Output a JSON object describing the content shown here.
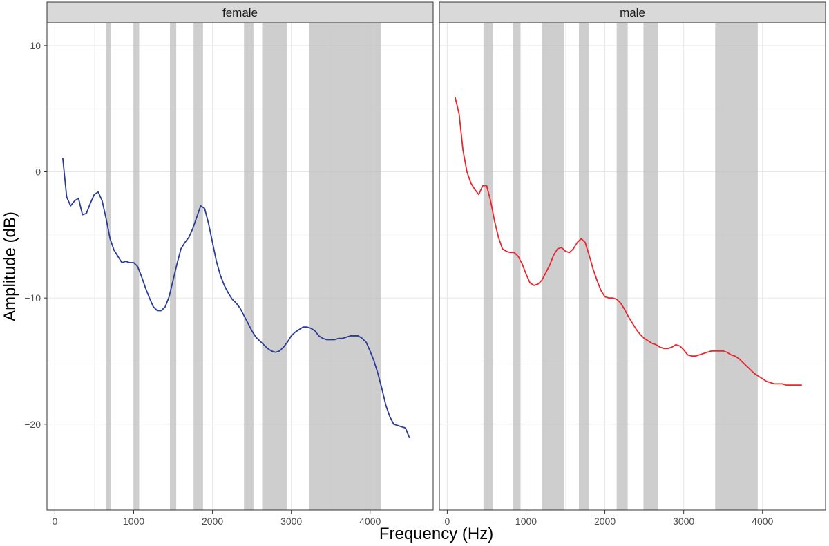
{
  "chart_data": {
    "type": "line",
    "xlabel": "Frequency (Hz)",
    "ylabel": "Amplitude (dB)",
    "xlim": [
      -100,
      4800
    ],
    "ylim": [
      -26.8,
      11.8
    ],
    "x_ticks": [
      0,
      1000,
      2000,
      3000,
      4000
    ],
    "x_tick_labels": [
      "0",
      "1000",
      "2000",
      "3000",
      "4000"
    ],
    "y_ticks": [
      10,
      0,
      -10,
      -20
    ],
    "y_tick_labels": [
      "10",
      "0",
      "−10",
      "−20"
    ],
    "grid": true,
    "panels": [
      {
        "facet": "female",
        "line_color": "#2a3d96",
        "shaded_bands": [
          [
            650,
            710
          ],
          [
            1000,
            1070
          ],
          [
            1460,
            1540
          ],
          [
            1760,
            1880
          ],
          [
            2400,
            2520
          ],
          [
            2630,
            2950
          ],
          [
            3230,
            4140
          ]
        ],
        "x": [
          100,
          150,
          200,
          250,
          300,
          350,
          400,
          450,
          500,
          550,
          600,
          650,
          700,
          750,
          800,
          850,
          900,
          950,
          1000,
          1050,
          1100,
          1150,
          1200,
          1250,
          1300,
          1350,
          1400,
          1450,
          1500,
          1550,
          1600,
          1650,
          1700,
          1750,
          1800,
          1850,
          1900,
          1950,
          2000,
          2050,
          2100,
          2150,
          2200,
          2250,
          2300,
          2350,
          2400,
          2450,
          2500,
          2550,
          2600,
          2650,
          2700,
          2750,
          2800,
          2850,
          2900,
          2950,
          3000,
          3050,
          3100,
          3150,
          3200,
          3250,
          3300,
          3350,
          3400,
          3450,
          3500,
          3550,
          3600,
          3650,
          3700,
          3750,
          3800,
          3850,
          3900,
          3950,
          4000,
          4050,
          4100,
          4150,
          4200,
          4250,
          4300,
          4350,
          4400,
          4450,
          4500
        ],
        "y": [
          1.1,
          -2.0,
          -2.7,
          -2.3,
          -2.1,
          -3.4,
          -3.3,
          -2.5,
          -1.8,
          -1.6,
          -2.3,
          -3.7,
          -5.3,
          -6.2,
          -6.7,
          -7.2,
          -7.1,
          -7.2,
          -7.2,
          -7.5,
          -8.3,
          -9.2,
          -10.0,
          -10.7,
          -11.0,
          -11.0,
          -10.7,
          -9.9,
          -8.6,
          -7.3,
          -6.1,
          -5.6,
          -5.2,
          -4.5,
          -3.6,
          -2.7,
          -2.9,
          -4.1,
          -5.6,
          -7.1,
          -8.2,
          -9.0,
          -9.6,
          -10.1,
          -10.4,
          -10.8,
          -11.4,
          -12.0,
          -12.6,
          -13.1,
          -13.4,
          -13.7,
          -14.0,
          -14.2,
          -14.3,
          -14.2,
          -13.9,
          -13.5,
          -13.0,
          -12.7,
          -12.5,
          -12.3,
          -12.3,
          -12.4,
          -12.6,
          -13.0,
          -13.2,
          -13.3,
          -13.3,
          -13.3,
          -13.2,
          -13.2,
          -13.1,
          -13.0,
          -13.0,
          -13.0,
          -13.2,
          -13.5,
          -14.2,
          -15.0,
          -16.0,
          -17.2,
          -18.5,
          -19.4,
          -20.0,
          -20.1,
          -20.2,
          -20.3,
          -21.1
        ]
      },
      {
        "facet": "male",
        "line_color": "#e8262e",
        "shaded_bands": [
          [
            460,
            580
          ],
          [
            830,
            930
          ],
          [
            1200,
            1480
          ],
          [
            1670,
            1800
          ],
          [
            2150,
            2290
          ],
          [
            2490,
            2670
          ],
          [
            3400,
            3940
          ]
        ],
        "x": [
          100,
          150,
          200,
          250,
          300,
          350,
          400,
          450,
          500,
          550,
          600,
          650,
          700,
          750,
          800,
          850,
          900,
          950,
          1000,
          1050,
          1100,
          1150,
          1200,
          1250,
          1300,
          1350,
          1400,
          1450,
          1500,
          1550,
          1600,
          1650,
          1700,
          1750,
          1800,
          1850,
          1900,
          1950,
          2000,
          2050,
          2100,
          2150,
          2200,
          2250,
          2300,
          2350,
          2400,
          2450,
          2500,
          2550,
          2600,
          2650,
          2700,
          2750,
          2800,
          2850,
          2900,
          2950,
          3000,
          3050,
          3100,
          3150,
          3200,
          3250,
          3300,
          3350,
          3400,
          3450,
          3500,
          3550,
          3600,
          3650,
          3700,
          3750,
          3800,
          3850,
          3900,
          3950,
          4000,
          4050,
          4100,
          4150,
          4200,
          4250,
          4300,
          4350,
          4400,
          4450,
          4500
        ],
        "y": [
          5.9,
          4.6,
          1.7,
          0.0,
          -0.9,
          -1.4,
          -1.8,
          -1.1,
          -1.1,
          -2.3,
          -3.9,
          -5.2,
          -6.1,
          -6.3,
          -6.4,
          -6.4,
          -6.7,
          -7.3,
          -8.1,
          -8.8,
          -9.0,
          -8.9,
          -8.6,
          -8.0,
          -7.4,
          -6.6,
          -6.1,
          -6.0,
          -6.3,
          -6.4,
          -6.1,
          -5.6,
          -5.3,
          -5.6,
          -6.6,
          -7.7,
          -8.6,
          -9.4,
          -9.9,
          -10.0,
          -10.0,
          -10.1,
          -10.4,
          -10.9,
          -11.5,
          -12.0,
          -12.5,
          -12.9,
          -13.2,
          -13.4,
          -13.6,
          -13.7,
          -13.9,
          -14.0,
          -14.0,
          -13.9,
          -13.7,
          -13.8,
          -14.1,
          -14.5,
          -14.6,
          -14.6,
          -14.5,
          -14.4,
          -14.3,
          -14.2,
          -14.2,
          -14.2,
          -14.2,
          -14.3,
          -14.5,
          -14.6,
          -14.8,
          -15.1,
          -15.4,
          -15.7,
          -16.0,
          -16.2,
          -16.4,
          -16.6,
          -16.7,
          -16.8,
          -16.8,
          -16.8,
          -16.9,
          -16.9,
          -16.9,
          -16.9,
          -16.9
        ]
      }
    ]
  }
}
